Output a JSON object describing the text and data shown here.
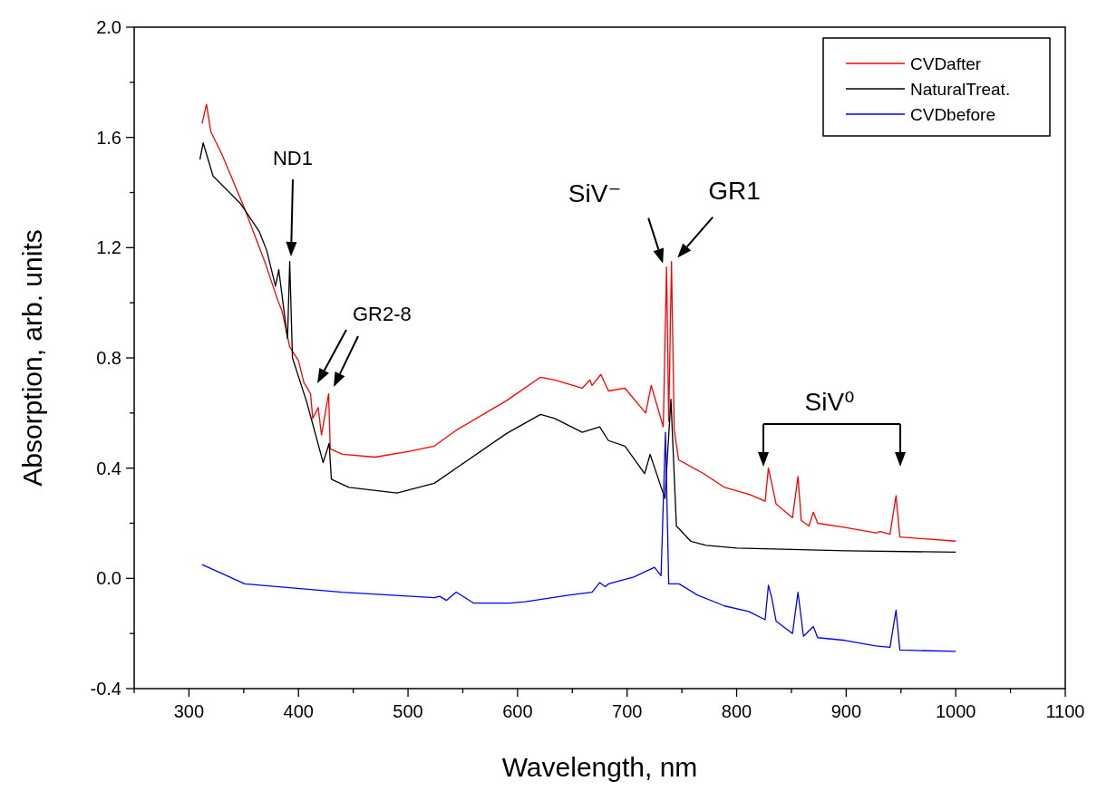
{
  "chart_data": {
    "type": "line",
    "xlabel": "Wavelength, nm",
    "ylabel": "Absorption, arb. units",
    "xlim": [
      250,
      1100
    ],
    "xticks": [
      300,
      400,
      500,
      600,
      700,
      800,
      900,
      1000,
      1100
    ],
    "ylim": [
      -0.4,
      2.0
    ],
    "yticks": [
      {
        "value": -0.4,
        "label": "-0.4"
      },
      {
        "value": 0,
        "label": "0.0"
      },
      {
        "value": 0.4,
        "label": "0.4"
      },
      {
        "value": 0.8,
        "label": "0.8"
      },
      {
        "value": 1.2,
        "label": "1.2"
      },
      {
        "value": 1.6,
        "label": "1.6"
      },
      {
        "value": 2.0,
        "label": "2.0"
      }
    ],
    "grid": false,
    "legend": "top right",
    "marker": "none",
    "line_style": "solid",
    "series": [
      {
        "name": "CVDafter",
        "color": "#ff0000",
        "x": [
          312,
          316,
          320,
          330,
          351,
          370,
          381,
          385,
          392,
          400,
          405,
          411,
          413,
          418,
          421,
          427.5,
          429,
          440,
          470,
          500,
          524,
          545,
          590,
          621,
          634,
          659,
          666,
          668,
          676,
          683,
          698,
          717,
          722,
          733,
          736,
          738,
          740.5,
          743,
          747,
          770,
          789,
          811.5,
          826,
          829,
          832,
          836,
          851,
          856,
          859,
          866,
          870,
          874,
          899,
          927,
          931,
          940,
          945.5,
          949,
          1000
        ],
        "values": [
          1.65,
          1.72,
          1.62,
          1.54,
          1.34,
          1.14,
          1.01,
          0.97,
          0.84,
          0.79,
          0.71,
          0.67,
          0.58,
          0.62,
          0.52,
          0.67,
          0.47,
          0.45,
          0.44,
          0.46,
          0.48,
          0.54,
          0.645,
          0.73,
          0.72,
          0.69,
          0.72,
          0.7,
          0.74,
          0.68,
          0.69,
          0.6,
          0.7,
          0.55,
          1.13,
          0.57,
          1.15,
          0.54,
          0.43,
          0.38,
          0.33,
          0.305,
          0.28,
          0.4,
          0.345,
          0.27,
          0.22,
          0.37,
          0.21,
          0.19,
          0.24,
          0.2,
          0.185,
          0.165,
          0.17,
          0.16,
          0.3,
          0.15,
          0.135
        ]
      },
      {
        "name": "NaturalTreat.",
        "color": "#000000",
        "x": [
          310,
          313,
          322,
          347,
          364,
          371,
          379,
          382,
          390,
          392,
          394.5,
          407.5,
          413,
          422.5,
          428,
          430,
          446,
          490,
          524,
          590,
          621,
          634,
          659,
          675,
          683,
          698,
          716,
          721,
          734.5,
          740,
          745,
          758,
          772,
          800,
          900,
          1000
        ],
        "values": [
          1.52,
          1.58,
          1.46,
          1.36,
          1.26,
          1.19,
          1.06,
          1.12,
          0.87,
          1.15,
          0.8,
          0.64,
          0.56,
          0.42,
          0.49,
          0.36,
          0.33,
          0.31,
          0.345,
          0.526,
          0.595,
          0.58,
          0.53,
          0.55,
          0.5,
          0.48,
          0.38,
          0.45,
          0.29,
          0.65,
          0.19,
          0.135,
          0.12,
          0.11,
          0.1,
          0.095
        ]
      },
      {
        "name": "CVDbefore",
        "color": "#0000ff",
        "x": [
          312,
          351,
          440,
          524,
          529,
          535,
          544,
          560,
          593,
          607,
          648,
          668,
          675,
          680,
          683,
          706,
          725,
          731,
          735,
          738,
          747.5,
          764,
          789,
          811,
          826,
          829,
          832,
          836,
          851,
          856,
          861,
          870,
          874,
          899,
          927,
          940,
          945.5,
          949,
          1000
        ],
        "values": [
          0.05,
          -0.02,
          -0.05,
          -0.07,
          -0.065,
          -0.08,
          -0.05,
          -0.09,
          -0.09,
          -0.085,
          -0.06,
          -0.05,
          -0.015,
          -0.03,
          -0.02,
          0.005,
          0.04,
          0.01,
          0.53,
          -0.02,
          -0.02,
          -0.06,
          -0.1,
          -0.12,
          -0.15,
          -0.025,
          -0.07,
          -0.155,
          -0.2,
          -0.05,
          -0.21,
          -0.175,
          -0.215,
          -0.225,
          -0.245,
          -0.25,
          -0.115,
          -0.26,
          -0.265
        ]
      }
    ],
    "annotations": [
      "ND1",
      "GR2-8",
      {
        "text": "SiV⁻",
        "x": 736,
        "y": 1.13
      },
      {
        "text": "GR1",
        "x": 741,
        "y": 1.15
      },
      "SiV⁰"
    ]
  }
}
